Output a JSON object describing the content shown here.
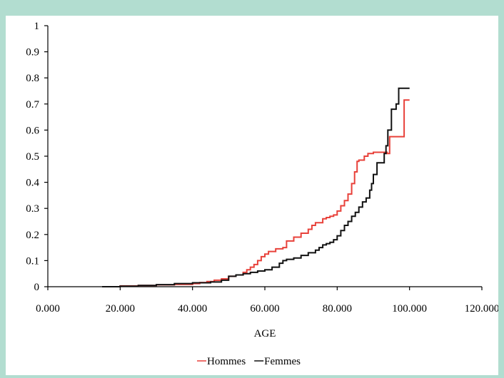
{
  "chart_data": {
    "type": "line",
    "title": "",
    "xlabel": "AGE",
    "ylabel": "",
    "xlim": [
      0,
      120
    ],
    "ylim": [
      0,
      1
    ],
    "grid": false,
    "legend_position": "bottom",
    "x_ticks": [
      {
        "value": 0,
        "label": "0.000"
      },
      {
        "value": 20,
        "label": "20.000"
      },
      {
        "value": 40,
        "label": "40.000"
      },
      {
        "value": 60,
        "label": "60.000"
      },
      {
        "value": 80,
        "label": "80.000"
      },
      {
        "value": 100,
        "label": "100.000"
      },
      {
        "value": 120,
        "label": "120.000"
      }
    ],
    "y_ticks": [
      {
        "value": 0,
        "label": "0"
      },
      {
        "value": 0.1,
        "label": "0.1"
      },
      {
        "value": 0.2,
        "label": "0.2"
      },
      {
        "value": 0.3,
        "label": "0.3"
      },
      {
        "value": 0.4,
        "label": "0.4"
      },
      {
        "value": 0.5,
        "label": "0.5"
      },
      {
        "value": 0.6,
        "label": "0.6"
      },
      {
        "value": 0.7,
        "label": "0.7"
      },
      {
        "value": 0.8,
        "label": "0.8"
      },
      {
        "value": 0.9,
        "label": "0.9"
      },
      {
        "value": 1,
        "label": "1"
      }
    ],
    "series": [
      {
        "name": "Hommes",
        "color": "#e8413a",
        "step": true,
        "points": [
          [
            16,
            0
          ],
          [
            20,
            0.003
          ],
          [
            25,
            0.005
          ],
          [
            30,
            0.007
          ],
          [
            35,
            0.009
          ],
          [
            40,
            0.012
          ],
          [
            42,
            0.016
          ],
          [
            44,
            0.02
          ],
          [
            46,
            0.025
          ],
          [
            48,
            0.03
          ],
          [
            50,
            0.04
          ],
          [
            52,
            0.045
          ],
          [
            54,
            0.055
          ],
          [
            55,
            0.065
          ],
          [
            56,
            0.075
          ],
          [
            57,
            0.085
          ],
          [
            58,
            0.1
          ],
          [
            59,
            0.115
          ],
          [
            60,
            0.125
          ],
          [
            61,
            0.135
          ],
          [
            63,
            0.145
          ],
          [
            65,
            0.15
          ],
          [
            66,
            0.175
          ],
          [
            68,
            0.19
          ],
          [
            70,
            0.205
          ],
          [
            72,
            0.22
          ],
          [
            73,
            0.235
          ],
          [
            74,
            0.245
          ],
          [
            76,
            0.26
          ],
          [
            77,
            0.265
          ],
          [
            78,
            0.27
          ],
          [
            79,
            0.275
          ],
          [
            80,
            0.29
          ],
          [
            81,
            0.31
          ],
          [
            82,
            0.33
          ],
          [
            83,
            0.355
          ],
          [
            84,
            0.395
          ],
          [
            84.8,
            0.44
          ],
          [
            85.5,
            0.48
          ],
          [
            86,
            0.485
          ],
          [
            87.5,
            0.5
          ],
          [
            88.5,
            0.51
          ],
          [
            90,
            0.515
          ],
          [
            92,
            0.515
          ],
          [
            93.8,
            0.51
          ],
          [
            94.5,
            0.575
          ],
          [
            97.5,
            0.575
          ],
          [
            98.5,
            0.715
          ],
          [
            100,
            0.715
          ]
        ]
      },
      {
        "name": "Femmes",
        "color": "#111111",
        "step": true,
        "points": [
          [
            15,
            0
          ],
          [
            20,
            0.002
          ],
          [
            25,
            0.005
          ],
          [
            30,
            0.008
          ],
          [
            35,
            0.012
          ],
          [
            40,
            0.015
          ],
          [
            45,
            0.018
          ],
          [
            48,
            0.025
          ],
          [
            50,
            0.04
          ],
          [
            52,
            0.045
          ],
          [
            54,
            0.05
          ],
          [
            56,
            0.055
          ],
          [
            58,
            0.06
          ],
          [
            60,
            0.065
          ],
          [
            62,
            0.075
          ],
          [
            64,
            0.09
          ],
          [
            65,
            0.1
          ],
          [
            66,
            0.105
          ],
          [
            68,
            0.11
          ],
          [
            70,
            0.12
          ],
          [
            72,
            0.13
          ],
          [
            74,
            0.14
          ],
          [
            75,
            0.15
          ],
          [
            76,
            0.16
          ],
          [
            77,
            0.165
          ],
          [
            78,
            0.17
          ],
          [
            79,
            0.18
          ],
          [
            80,
            0.195
          ],
          [
            81,
            0.215
          ],
          [
            82,
            0.235
          ],
          [
            83,
            0.25
          ],
          [
            84,
            0.27
          ],
          [
            85,
            0.285
          ],
          [
            86,
            0.305
          ],
          [
            87,
            0.325
          ],
          [
            88,
            0.34
          ],
          [
            89,
            0.37
          ],
          [
            89.5,
            0.395
          ],
          [
            90,
            0.43
          ],
          [
            91,
            0.475
          ],
          [
            92,
            0.475
          ],
          [
            93,
            0.51
          ],
          [
            93.5,
            0.54
          ],
          [
            94,
            0.6
          ],
          [
            95,
            0.68
          ],
          [
            96.3,
            0.7
          ],
          [
            97,
            0.76
          ],
          [
            100,
            0.76
          ]
        ]
      }
    ]
  }
}
